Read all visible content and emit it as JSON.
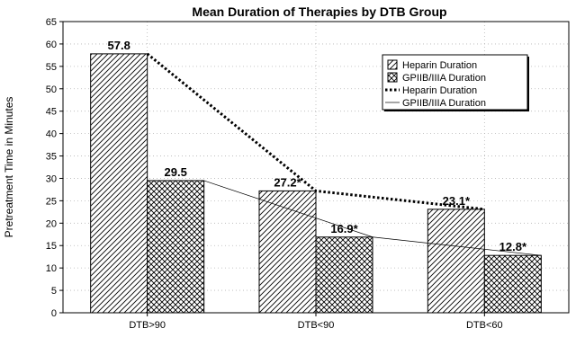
{
  "chart_data": {
    "type": "bar",
    "title": "Mean Duration of Therapies by DTB Group",
    "xlabel": "",
    "ylabel": "Pretreatment Time in Minutes",
    "categories": [
      "DTB>90",
      "DTB<90",
      "DTB<60"
    ],
    "ylim": [
      0,
      65
    ],
    "yticks": [
      0,
      5,
      10,
      15,
      20,
      25,
      30,
      35,
      40,
      45,
      50,
      55,
      60,
      65
    ],
    "grid": true,
    "legend_position": "top-right",
    "series": [
      {
        "name": "Heparin Duration",
        "kind": "bar",
        "pattern": "diagonal-hatch",
        "values": [
          57.8,
          27.2,
          23.1
        ],
        "labels": [
          "57.8",
          "27.2*",
          "23.1*"
        ]
      },
      {
        "name": "GPIIB/IIIA Duration",
        "kind": "bar",
        "pattern": "cross-hatch",
        "values": [
          29.5,
          16.9,
          12.8
        ],
        "labels": [
          "29.5",
          "16.9*",
          "12.8*"
        ]
      },
      {
        "name": "Heparin Duration",
        "kind": "line",
        "style": "dotted",
        "values": [
          57.8,
          27.2,
          23.1
        ]
      },
      {
        "name": "GPIIB/IIIA Duration",
        "kind": "line",
        "style": "thin-solid",
        "values": [
          29.5,
          16.9,
          12.8
        ]
      }
    ]
  }
}
